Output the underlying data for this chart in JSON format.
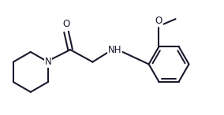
{
  "bg_color": "#ffffff",
  "line_color": "#1a1a2e",
  "line_width": 1.5,
  "font_size": 8.5,
  "figsize": [
    2.84,
    1.46
  ],
  "dpi": 100,
  "xlim": [
    0,
    10.0
  ],
  "ylim": [
    -2.2,
    2.8
  ]
}
